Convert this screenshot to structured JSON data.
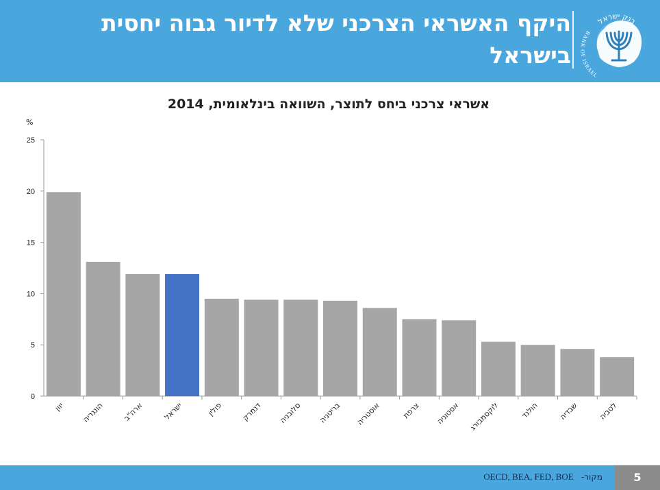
{
  "header": {
    "title": "היקף האשראי הצרכני שלא לדיור גבוה יחסית בישראל",
    "logo_text_hebrew": "בנק ישראל",
    "logo_text_english": "BANK OF ISRAEL"
  },
  "footer": {
    "source_label": "מקור-",
    "source_text": "OECD, BEA, FED, BOE",
    "page_number": "5"
  },
  "colors": {
    "header_bg": "#4aa7de",
    "bar_default": "#a6a6a6",
    "bar_highlight": "#4472c4",
    "page_box": "#8c8c8c"
  },
  "chart_data": {
    "type": "bar",
    "title": "אשראי צרכני ביחס לתוצר, השוואה בינלאומית, 2014",
    "ylabel": "%",
    "ylim": [
      0,
      25
    ],
    "yticks": [
      0,
      5,
      10,
      15,
      20,
      25
    ],
    "grid": false,
    "categories": [
      "יוון",
      "הונגריה",
      "ארה\"ב",
      "ישראל",
      "פולין",
      "דנמרק",
      "סלובניה",
      "בריטניה",
      "אוסטריה",
      "צרפת",
      "אסטוניה",
      "לוקסמבורג",
      "הולנד",
      "שבדיה",
      "לטביה"
    ],
    "values": [
      19.9,
      13.1,
      11.9,
      11.9,
      9.5,
      9.4,
      9.4,
      9.3,
      8.6,
      7.5,
      7.4,
      5.3,
      5.0,
      4.6,
      3.8
    ],
    "highlight": "ישראל"
  }
}
